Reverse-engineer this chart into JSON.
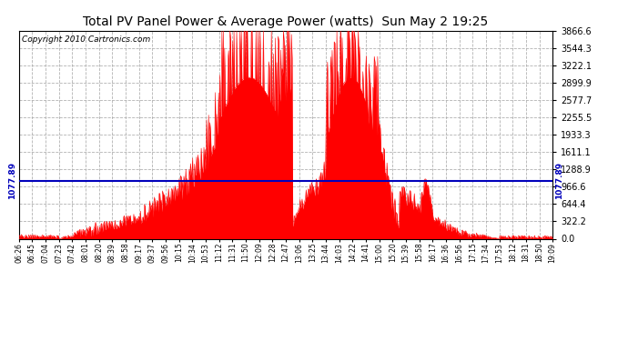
{
  "title": "Total PV Panel Power & Average Power (watts)  Sun May 2 19:25",
  "copyright": "Copyright 2010 Cartronics.com",
  "avg_power": 1077.89,
  "y_max": 3866.6,
  "y_min": 0.0,
  "y_tick_vals": [
    0.0,
    322.2,
    644.4,
    966.6,
    1288.9,
    1611.1,
    1933.3,
    2255.5,
    2577.7,
    2899.9,
    3222.1,
    3544.3,
    3866.6
  ],
  "y_tick_labels": [
    "0.0",
    "322.2",
    "644.4",
    "966.6",
    "1288.9",
    "1611.1",
    "1933.3",
    "2255.5",
    "2577.7",
    "2899.9",
    "3222.1",
    "3544.3",
    "3866.6"
  ],
  "x_tick_labels": [
    "06:26",
    "06:45",
    "07:04",
    "07:23",
    "07:42",
    "08:01",
    "08:20",
    "08:39",
    "08:58",
    "09:17",
    "09:37",
    "09:56",
    "10:15",
    "10:34",
    "10:53",
    "11:12",
    "11:31",
    "11:50",
    "12:09",
    "12:28",
    "12:47",
    "13:06",
    "13:25",
    "13:44",
    "14:03",
    "14:22",
    "14:41",
    "15:00",
    "15:20",
    "15:39",
    "15:58",
    "16:17",
    "16:36",
    "16:56",
    "17:15",
    "17:34",
    "17:53",
    "18:12",
    "18:31",
    "18:50",
    "19:09"
  ],
  "fill_color": "#FF0000",
  "avg_line_color": "#0000BB",
  "background_color": "#FFFFFF",
  "grid_color": "#AAAAAA",
  "title_fontsize": 10,
  "copyright_fontsize": 6.5
}
